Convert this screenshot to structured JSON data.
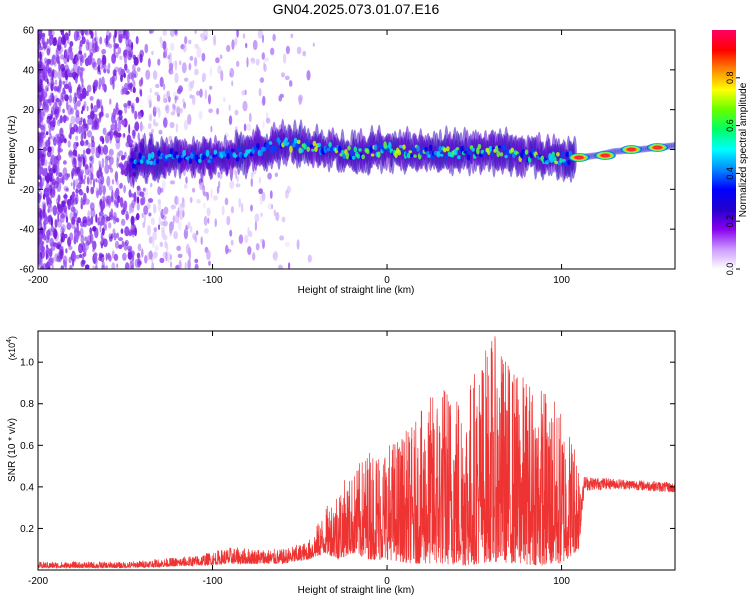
{
  "title": "GN04.2025.073.01.07.E16",
  "colors": {
    "snr_line": "#ee3333",
    "spectrogram_background": "#ffffff",
    "axis": "#000000"
  },
  "chart_data": [
    {
      "type": "heatmap",
      "xlabel": "Height of straight line (km)",
      "ylabel": "Frequency (Hz)",
      "xlim": [
        -200,
        165
      ],
      "ylim": [
        -60,
        60
      ],
      "x_ticks": [
        -200,
        -100,
        0,
        100
      ],
      "x_tick_labels": [
        "-200",
        "-100",
        "0",
        "100"
      ],
      "y_ticks": [
        -60,
        -40,
        -20,
        0,
        20,
        40,
        60
      ],
      "y_tick_labels": [
        "-60",
        "-40",
        "-20",
        "0",
        "20",
        "40",
        "60"
      ],
      "colorbar": {
        "label": "Normalized spectral amplitude",
        "range": [
          0,
          1
        ],
        "ticks": [
          0.0,
          0.2,
          0.4,
          0.6,
          0.8
        ],
        "tick_labels": [
          "0.0",
          "0.2",
          "0.4",
          "0.6",
          "0.8"
        ],
        "colormap": [
          "#ffffff",
          "#cc99ff",
          "#8800ee",
          "#2200cc",
          "#0000ff",
          "#0088ff",
          "#00ffff",
          "#00ff66",
          "#66ff00",
          "#ffff00",
          "#ff8800",
          "#ff0000",
          "#ff0066"
        ]
      },
      "band_centerline": [
        {
          "x": -148,
          "y": -8
        },
        {
          "x": -140,
          "y": -5
        },
        {
          "x": -120,
          "y": -3
        },
        {
          "x": -100,
          "y": -4
        },
        {
          "x": -80,
          "y": -2
        },
        {
          "x": -60,
          "y": 3
        },
        {
          "x": -40,
          "y": 1
        },
        {
          "x": -20,
          "y": -2
        },
        {
          "x": 0,
          "y": 0
        },
        {
          "x": 20,
          "y": -1
        },
        {
          "x": 40,
          "y": -2
        },
        {
          "x": 60,
          "y": 0
        },
        {
          "x": 80,
          "y": -3
        },
        {
          "x": 100,
          "y": -5
        },
        {
          "x": 110,
          "y": -4
        },
        {
          "x": 120,
          "y": -3
        },
        {
          "x": 130,
          "y": -1
        },
        {
          "x": 145,
          "y": 0
        },
        {
          "x": 165,
          "y": 2
        }
      ],
      "hot_spots": [
        {
          "x": 110,
          "y": -4,
          "amplitude": 0.95
        },
        {
          "x": 125,
          "y": -3,
          "amplitude": 0.9
        },
        {
          "x": 140,
          "y": 0,
          "amplitude": 0.85
        },
        {
          "x": 155,
          "y": 1,
          "amplitude": 0.9
        }
      ]
    },
    {
      "type": "line",
      "xlabel": "Height of straight line (km)",
      "ylabel": "SNR (10 * v/v)",
      "y_exponent_label": "(x10",
      "y_exponent": "4",
      "xlim": [
        -200,
        165
      ],
      "ylim": [
        0,
        1.15
      ],
      "x_ticks": [
        -200,
        -100,
        0,
        100
      ],
      "x_tick_labels": [
        "-200",
        "-100",
        "0",
        "100"
      ],
      "y_ticks": [
        0.2,
        0.4,
        0.6,
        0.8,
        1.0
      ],
      "y_tick_labels": [
        "0.2",
        "0.4",
        "0.6",
        "0.8",
        "1.0"
      ],
      "envelope": [
        {
          "x": -200,
          "low": 0.01,
          "high": 0.04
        },
        {
          "x": -150,
          "low": 0.01,
          "high": 0.04
        },
        {
          "x": -110,
          "low": 0.02,
          "high": 0.07
        },
        {
          "x": -90,
          "low": 0.03,
          "high": 0.11
        },
        {
          "x": -60,
          "low": 0.03,
          "high": 0.1
        },
        {
          "x": -45,
          "low": 0.05,
          "high": 0.14
        },
        {
          "x": -35,
          "low": 0.08,
          "high": 0.3
        },
        {
          "x": -28,
          "low": 0.05,
          "high": 0.42
        },
        {
          "x": -20,
          "low": 0.08,
          "high": 0.46
        },
        {
          "x": -10,
          "low": 0.05,
          "high": 0.6
        },
        {
          "x": 0,
          "low": 0.05,
          "high": 0.62
        },
        {
          "x": 15,
          "low": 0.03,
          "high": 0.7
        },
        {
          "x": 30,
          "low": 0.03,
          "high": 0.92
        },
        {
          "x": 45,
          "low": 0.02,
          "high": 0.9
        },
        {
          "x": 60,
          "low": 0.04,
          "high": 1.15
        },
        {
          "x": 75,
          "low": 0.03,
          "high": 0.96
        },
        {
          "x": 90,
          "low": 0.02,
          "high": 0.9
        },
        {
          "x": 100,
          "low": 0.03,
          "high": 0.78
        },
        {
          "x": 110,
          "low": 0.1,
          "high": 0.6
        },
        {
          "x": 113,
          "low": 0.38,
          "high": 0.45
        },
        {
          "x": 130,
          "low": 0.39,
          "high": 0.44
        },
        {
          "x": 150,
          "low": 0.38,
          "high": 0.43
        },
        {
          "x": 165,
          "low": 0.37,
          "high": 0.42
        }
      ]
    }
  ]
}
